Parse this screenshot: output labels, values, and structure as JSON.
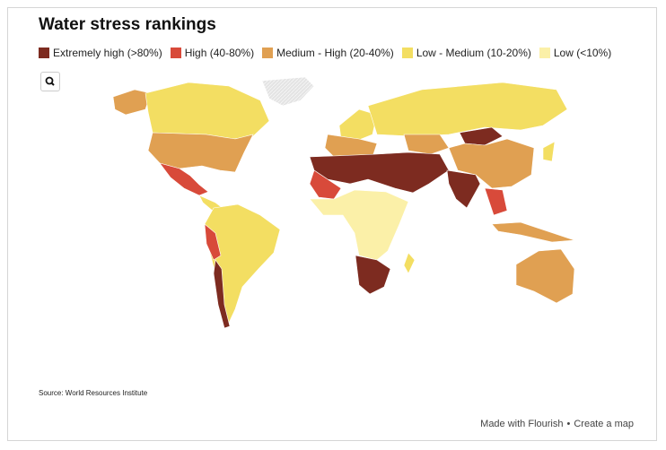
{
  "header": {
    "title": "Water stress rankings"
  },
  "legend": [
    {
      "label": "Extremely high (>80%)",
      "color": "#7d2b20"
    },
    {
      "label": "High (40-80%)",
      "color": "#d84a3a"
    },
    {
      "label": "Medium - High (20-40%)",
      "color": "#e0a052"
    },
    {
      "label": "Low - Medium (10-20%)",
      "color": "#f3de62"
    },
    {
      "label": "Low (<10%)",
      "color": "#fbf0a8"
    }
  ],
  "source": "Source: World Resources Institute",
  "footer": {
    "made_with": "Made with Flourish",
    "separator": "•",
    "create": "Create a map"
  }
}
